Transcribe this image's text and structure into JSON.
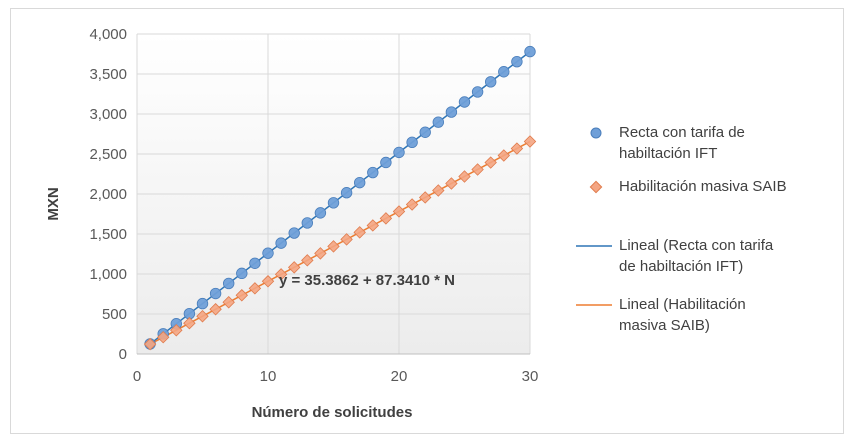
{
  "chart_data": {
    "type": "scatter",
    "title": "",
    "xlabel": "Número de solicitudes",
    "ylabel": "MXN",
    "xlim": [
      0,
      30
    ],
    "ylim": [
      0,
      4000
    ],
    "x_ticks": [
      "0",
      "10",
      "20",
      "30"
    ],
    "y_ticks": [
      "0",
      "500",
      "1,000",
      "1,500",
      "2,000",
      "2,500",
      "3,000",
      "3,500",
      "4,000"
    ],
    "grid": true,
    "legend_position": "right",
    "annotation": "y = 35.3862 + 87.3410 * N",
    "series": [
      {
        "name": "Recta con tarifa de habiltación IFT",
        "marker": "circle",
        "color": "#6f9fd8",
        "x": [
          1,
          2,
          3,
          4,
          5,
          6,
          7,
          8,
          9,
          10,
          11,
          12,
          13,
          14,
          15,
          16,
          17,
          18,
          19,
          20,
          21,
          22,
          23,
          24,
          25,
          26,
          27,
          28,
          29,
          30
        ],
        "values": [
          126,
          252,
          378,
          504,
          630,
          756,
          882,
          1008,
          1134,
          1260,
          1386,
          1512,
          1638,
          1764,
          1890,
          2016,
          2142,
          2268,
          2394,
          2520,
          2646,
          2772,
          2898,
          3024,
          3150,
          3276,
          3402,
          3528,
          3654,
          3780
        ]
      },
      {
        "name": "Habilitación masiva SAIB",
        "marker": "diamond",
        "color": "#f4a582",
        "x": [
          1,
          2,
          3,
          4,
          5,
          6,
          7,
          8,
          9,
          10,
          11,
          12,
          13,
          14,
          15,
          16,
          17,
          18,
          19,
          20,
          21,
          22,
          23,
          24,
          25,
          26,
          27,
          28,
          29,
          30
        ],
        "values": [
          123,
          210,
          297,
          385,
          472,
          559,
          647,
          734,
          821,
          909,
          996,
          1083,
          1171,
          1258,
          1345,
          1433,
          1520,
          1607,
          1695,
          1782,
          1869,
          1957,
          2044,
          2131,
          2219,
          2306,
          2393,
          2481,
          2568,
          2656
        ]
      }
    ],
    "trendlines": [
      {
        "name": "Lineal (Recta con tarifa de habiltación IFT)",
        "color": "#2e75b6",
        "intercept": 0,
        "slope": 126
      },
      {
        "name": "Lineal (Habilitación masiva SAIB)",
        "color": "#ed7d31",
        "intercept": 35.3862,
        "slope": 87.341
      }
    ],
    "legend": {
      "series1_line1": "Recta con tarifa de",
      "series1_line2": "habiltación IFT",
      "series2_line1": "Habilitación masiva SAIB",
      "trend1_line1": "Lineal (Recta con tarifa",
      "trend1_line2": "de habiltación IFT)",
      "trend2_line1": "Lineal (Habilitación",
      "trend2_line2": "masiva SAIB)"
    }
  }
}
